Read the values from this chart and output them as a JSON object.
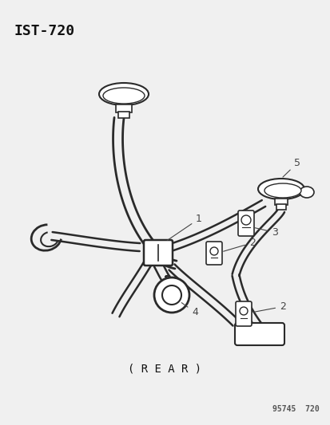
{
  "title": "IST-720",
  "footer": "95745  720",
  "rear_label": "( R E A R )",
  "background_color": "#f0f0f0",
  "line_color": "#2a2a2a",
  "label_color": "#444444",
  "figsize": [
    4.14,
    5.33
  ],
  "dpi": 100
}
